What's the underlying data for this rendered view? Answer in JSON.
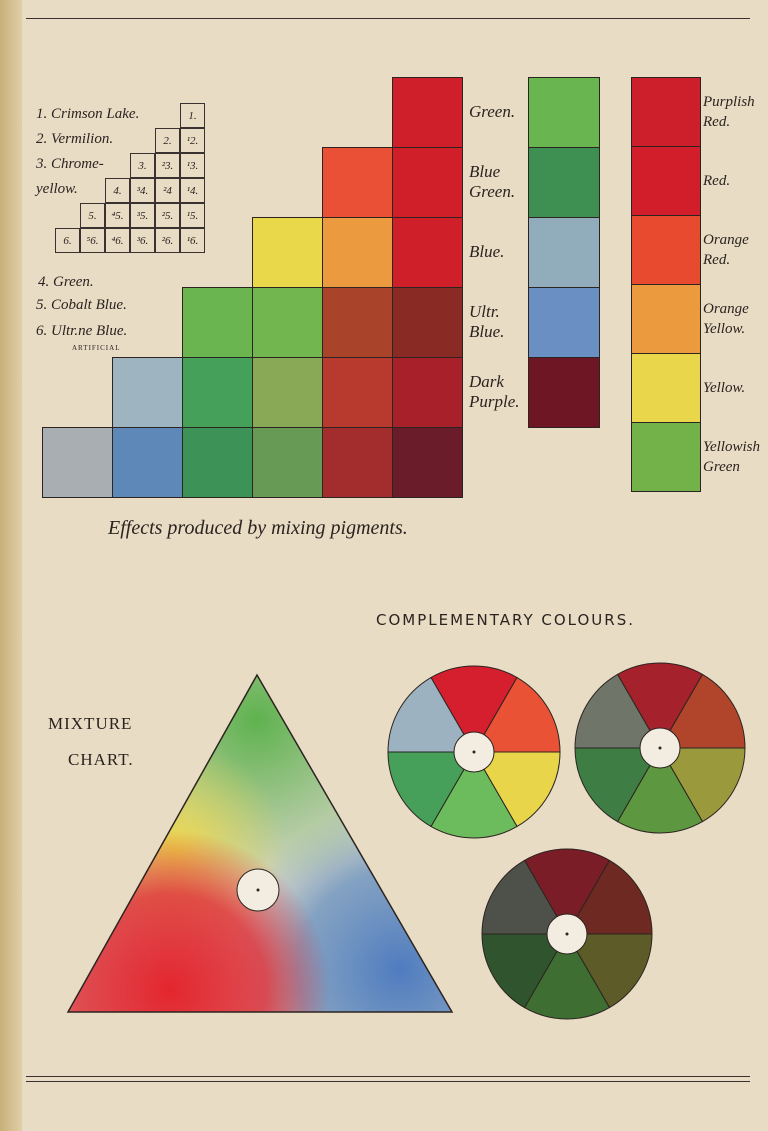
{
  "legend_pigments": [
    "1. Crimson Lake.",
    "2. Vermilion.",
    "3. Chrome-",
    "yellow."
  ],
  "legend_pigments_lower": [
    "4. Green.",
    "5. Cobalt Blue.",
    "6. Ultr.ne Blue."
  ],
  "legend_artificial": "ARTIFICIAL",
  "key_grid": [
    [
      "1."
    ],
    [
      "2.",
      "¹2."
    ],
    [
      "3.",
      "²3.",
      "¹3."
    ],
    [
      "4.",
      "³4.",
      "²4",
      "¹4."
    ],
    [
      "5.",
      "⁴5.",
      "³5.",
      "²5.",
      "¹5."
    ],
    [
      "6.",
      "⁵6.",
      "⁴6.",
      "³6.",
      "²6.",
      "¹6."
    ]
  ],
  "mixing_grid_colors": [
    [
      "#cf1f2b"
    ],
    [
      "#ea5035",
      "#d11f2a"
    ],
    [
      "#e8d84a",
      "#eb9a40",
      "#cf2029"
    ],
    [
      "#6ab550",
      "#71b64f",
      "#a9442a",
      "#8a2a25"
    ],
    [
      "#9eb4c0",
      "#45a05a",
      "#8aa957",
      "#b83a2e",
      "#a8202a"
    ],
    [
      "#a9aeb3",
      "#5e88b8",
      "#3d9258",
      "#679a55",
      "#a32d2c",
      "#6a1c2a"
    ]
  ],
  "middle_labels": [
    [
      "Green."
    ],
    [
      "Blue",
      "Green."
    ],
    [
      "Blue."
    ],
    [
      "Ultr.",
      "Blue."
    ],
    [
      "Dark",
      "Purple."
    ]
  ],
  "middle_colors": [
    "#69b651",
    "#3e9052",
    "#91adbc",
    "#6a8fc2",
    "#6f1625"
  ],
  "right_labels": [
    [
      "Purplish",
      "Red."
    ],
    [
      "Red."
    ],
    [
      "Orange",
      "Red."
    ],
    [
      "Orange",
      "Yellow."
    ],
    [
      "Yellow."
    ],
    [
      "Yellowish",
      "Green"
    ]
  ],
  "right_colors": [
    "#cd1e2c",
    "#d21e2b",
    "#e84a30",
    "#eb9a3e",
    "#ead64a",
    "#73b248"
  ],
  "caption": "Effects produced by mixing pigments.",
  "complementary_title": "COMPLEMENTARY COLOURS.",
  "mixture_title": [
    "MIXTURE",
    "CHART."
  ],
  "wheels": [
    [
      "#d51f2e",
      "#ea5236",
      "#e8d54a",
      "#6cbb5c",
      "#46a05a",
      "#9db2c0"
    ],
    [
      "#a5212b",
      "#b0452c",
      "#9a9a3c",
      "#5d973f",
      "#3e7e45",
      "#6f7568"
    ],
    [
      "#7b1d27",
      "#6e2a22",
      "#5d5c28",
      "#3f6e33",
      "#30552e",
      "#4e514a"
    ]
  ]
}
